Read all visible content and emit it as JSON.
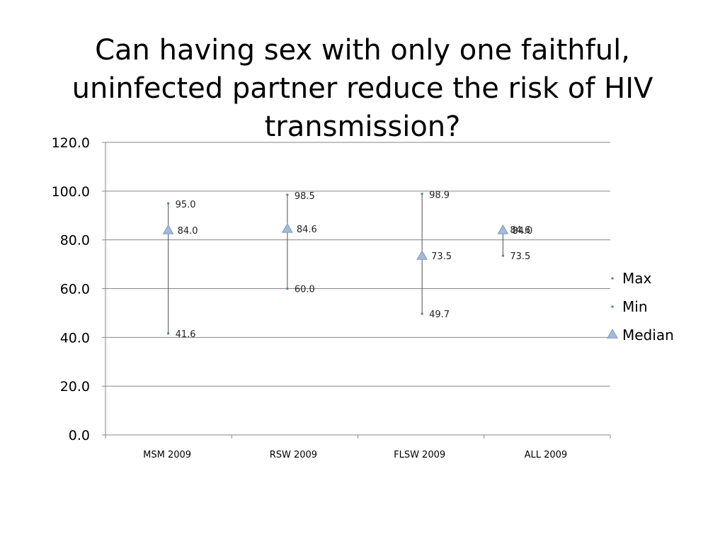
{
  "slide": {
    "title": "Can having sex with only one faithful, uninfected partner reduce the risk of HIV transmission?"
  },
  "colors": {
    "grid": "#868686",
    "range_line": "#4f4f4f",
    "max_min_marker": "#4f81bd",
    "median_marker": "#a6b9d6",
    "median_marker_stroke": "#7f98c0"
  },
  "chart_data": {
    "type": "high-low-median",
    "categories": [
      "MSM 2009",
      "RSW 2009",
      "FLSW 2009",
      "ALL 2009"
    ],
    "series": [
      {
        "name": "Max",
        "values": [
          95.0,
          98.5,
          98.9,
          84.6
        ],
        "labels": [
          "95.0",
          "98.5",
          "98.9",
          "84.6"
        ]
      },
      {
        "name": "Min",
        "values": [
          41.6,
          60.0,
          49.7,
          73.5
        ],
        "labels": [
          "41.6",
          "60.0",
          "49.7",
          "73.5"
        ]
      },
      {
        "name": "Median",
        "values": [
          84.0,
          84.6,
          73.5,
          84.0
        ],
        "labels": [
          "84.0",
          "84.6",
          "73.5",
          "84.0"
        ]
      }
    ],
    "ylim": [
      0,
      120
    ],
    "yticks": [
      "0.0",
      "20.0",
      "40.0",
      "60.0",
      "80.0",
      "100.0",
      "120.0"
    ],
    "grid": true,
    "legend": {
      "position": "right",
      "entries": [
        "Max",
        "Min",
        "Median"
      ]
    },
    "xlabel": "",
    "ylabel": ""
  }
}
